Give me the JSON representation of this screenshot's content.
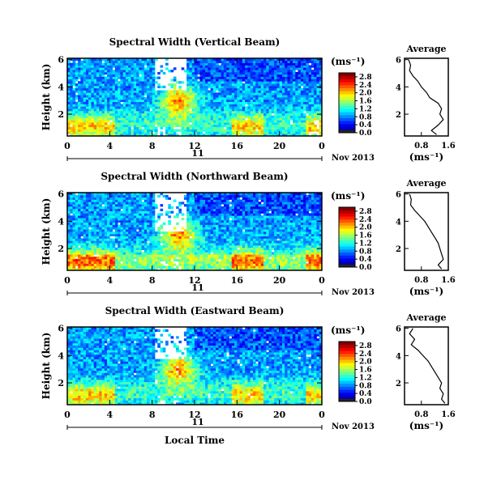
{
  "figure": {
    "xlabel": "Local Time",
    "ylabel": "Height (km)",
    "units_label": "(ms⁻¹)",
    "avg_title": "Average",
    "date_label": "Nov 2013",
    "day_label": "11"
  },
  "chart_data": [
    {
      "type": "heatmap",
      "title": "Spectral Width (Vertical Beam)",
      "xlabel": "",
      "ylabel": "Height (km)",
      "x_ticks": [
        "0",
        "4",
        "8",
        "12",
        "16",
        "20",
        "0"
      ],
      "y_ticks": [
        "2",
        "4",
        "6"
      ],
      "xlim": [
        0,
        24
      ],
      "ylim": [
        0.4,
        6.1
      ],
      "colorbar": {
        "label": "(ms⁻¹)",
        "ticks": [
          "0.0",
          "0.4",
          "0.8",
          "1.2",
          "1.6",
          "2.0",
          "2.4",
          "2.8"
        ],
        "range": [
          0,
          3.0
        ]
      },
      "average_profile": {
        "title": "Average",
        "xlabel": "(ms⁻¹)",
        "x_ticks": [
          "0.8",
          "1.6"
        ],
        "xlim": [
          0.3,
          1.6
        ],
        "y_ticks": [
          "2",
          "4",
          "6"
        ],
        "ylim": [
          0.4,
          6.1
        ],
        "height_km": [
          6.0,
          5.6,
          5.2,
          4.8,
          4.4,
          4.0,
          3.6,
          3.2,
          2.8,
          2.4,
          2.0,
          1.6,
          1.2,
          0.8,
          0.5
        ],
        "width_ms": [
          0.42,
          0.48,
          0.45,
          0.55,
          0.7,
          0.8,
          0.95,
          1.05,
          1.3,
          1.4,
          1.35,
          1.45,
          1.3,
          1.1,
          1.25
        ]
      }
    },
    {
      "type": "heatmap",
      "title": "Spectral Width (Northward Beam)",
      "xlabel": "",
      "ylabel": "Height (km)",
      "x_ticks": [
        "0",
        "4",
        "8",
        "12",
        "16",
        "20",
        "0"
      ],
      "y_ticks": [
        "2",
        "4",
        "6"
      ],
      "xlim": [
        0,
        24
      ],
      "ylim": [
        0.4,
        6.1
      ],
      "colorbar": {
        "label": "(ms⁻¹)",
        "ticks": [
          "0.0",
          "0.4",
          "0.8",
          "1.2",
          "1.6",
          "2.0",
          "2.4",
          "2.8"
        ],
        "range": [
          0,
          3.0
        ]
      },
      "average_profile": {
        "title": "Average",
        "xlabel": "(ms⁻¹)",
        "x_ticks": [
          "0.8",
          "1.6"
        ],
        "xlim": [
          0.3,
          1.6
        ],
        "y_ticks": [
          "2",
          "4",
          "6"
        ],
        "ylim": [
          0.4,
          6.1
        ],
        "height_km": [
          6.0,
          5.6,
          5.2,
          4.8,
          4.4,
          4.0,
          3.6,
          3.2,
          2.8,
          2.4,
          2.0,
          1.6,
          1.2,
          0.8,
          0.5
        ],
        "width_ms": [
          0.45,
          0.5,
          0.48,
          0.6,
          0.75,
          0.9,
          1.0,
          1.1,
          1.2,
          1.3,
          1.35,
          1.4,
          1.45,
          1.3,
          1.4
        ]
      }
    },
    {
      "type": "heatmap",
      "title": "Spectral Width (Eastward Beam)",
      "xlabel": "Local Time",
      "ylabel": "Height (km)",
      "x_ticks": [
        "0",
        "4",
        "8",
        "12",
        "16",
        "20",
        "0"
      ],
      "y_ticks": [
        "2",
        "4",
        "6"
      ],
      "xlim": [
        0,
        24
      ],
      "ylim": [
        0.4,
        6.1
      ],
      "colorbar": {
        "label": "(ms⁻¹)",
        "ticks": [
          "0.0",
          "0.4",
          "0.8",
          "1.2",
          "1.6",
          "2.0",
          "2.4",
          "2.8"
        ],
        "range": [
          0,
          3.0
        ]
      },
      "average_profile": {
        "title": "Average",
        "xlabel": "(ms⁻¹)",
        "x_ticks": [
          "0.8",
          "1.6"
        ],
        "xlim": [
          0.3,
          1.6
        ],
        "y_ticks": [
          "2",
          "4",
          "6"
        ],
        "ylim": [
          0.4,
          6.1
        ],
        "height_km": [
          6.0,
          5.6,
          5.2,
          4.8,
          4.4,
          4.0,
          3.6,
          3.2,
          2.8,
          2.4,
          2.0,
          1.6,
          1.2,
          0.8,
          0.5
        ],
        "width_ms": [
          0.55,
          0.45,
          0.6,
          0.5,
          0.7,
          0.85,
          1.0,
          1.1,
          1.2,
          1.3,
          1.4,
          1.35,
          1.45,
          1.4,
          1.5
        ]
      }
    }
  ]
}
